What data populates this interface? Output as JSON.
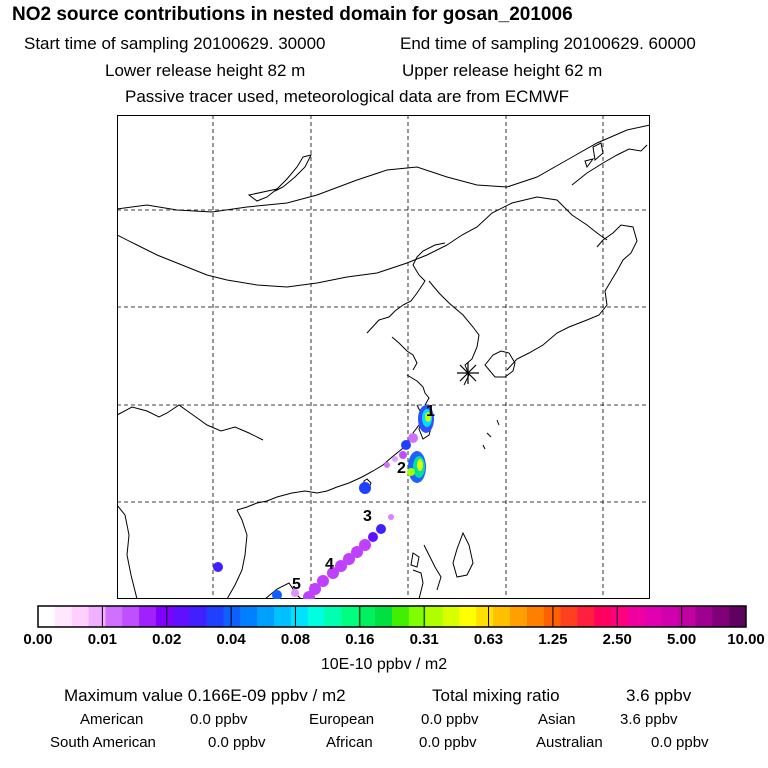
{
  "title": "NO2 source contributions in nested domain for gosan_201006",
  "header": {
    "start_label": "Start time of sampling 20100629. 30000",
    "end_label": "End time of sampling 20100629. 60000",
    "lower_release": "Lower release height   82 m",
    "upper_release": "Upper release height   62 m",
    "tracer_note": "Passive tracer used, meteorological data are from ECMWF"
  },
  "map": {
    "receptor_symbol": "asterisk",
    "source_labels": [
      "1",
      "2",
      "3",
      "4",
      "5"
    ]
  },
  "colorbar": {
    "tick_labels": [
      "0.00",
      "0.01",
      "0.02",
      "0.04",
      "0.08",
      "0.16",
      "0.31",
      "0.63",
      "1.25",
      "2.50",
      "5.00",
      "10.00"
    ],
    "units": "10E-10 ppbv / m2",
    "colors": [
      "#ffffff",
      "#ffe8ff",
      "#ffd0ff",
      "#f0b0ff",
      "#d070ff",
      "#c050ff",
      "#a020ff",
      "#8000ff",
      "#6010ff",
      "#4020ff",
      "#2040ff",
      "#1060ff",
      "#0080ff",
      "#00a0ff",
      "#00c0ff",
      "#00e0ff",
      "#00ffe0",
      "#00ffb0",
      "#00ff80",
      "#00f060",
      "#00e040",
      "#40f000",
      "#80ff00",
      "#b0ff00",
      "#d8ff00",
      "#ffff00",
      "#ffe000",
      "#ffc000",
      "#ffa000",
      "#ff8000",
      "#ff6000",
      "#ff4020",
      "#ff2040",
      "#ff0060",
      "#ff0080",
      "#f000a0",
      "#e000b0",
      "#d000b0",
      "#c000a0",
      "#a00090",
      "#80007a",
      "#600060"
    ]
  },
  "stats": {
    "max_label": "Maximum value  0.166E-09 ppbv / m2",
    "total_label": "Total mixing ratio",
    "total_value": "3.6 ppbv",
    "regions": [
      {
        "name": "American",
        "value": "0.0 ppbv"
      },
      {
        "name": "European",
        "value": "0.0 ppbv"
      },
      {
        "name": "Asian",
        "value": "3.6 ppbv"
      },
      {
        "name": "South American",
        "value": "0.0 ppbv"
      },
      {
        "name": "African",
        "value": "0.0 ppbv"
      },
      {
        "name": "Australian",
        "value": "0.0 ppbv"
      }
    ]
  }
}
